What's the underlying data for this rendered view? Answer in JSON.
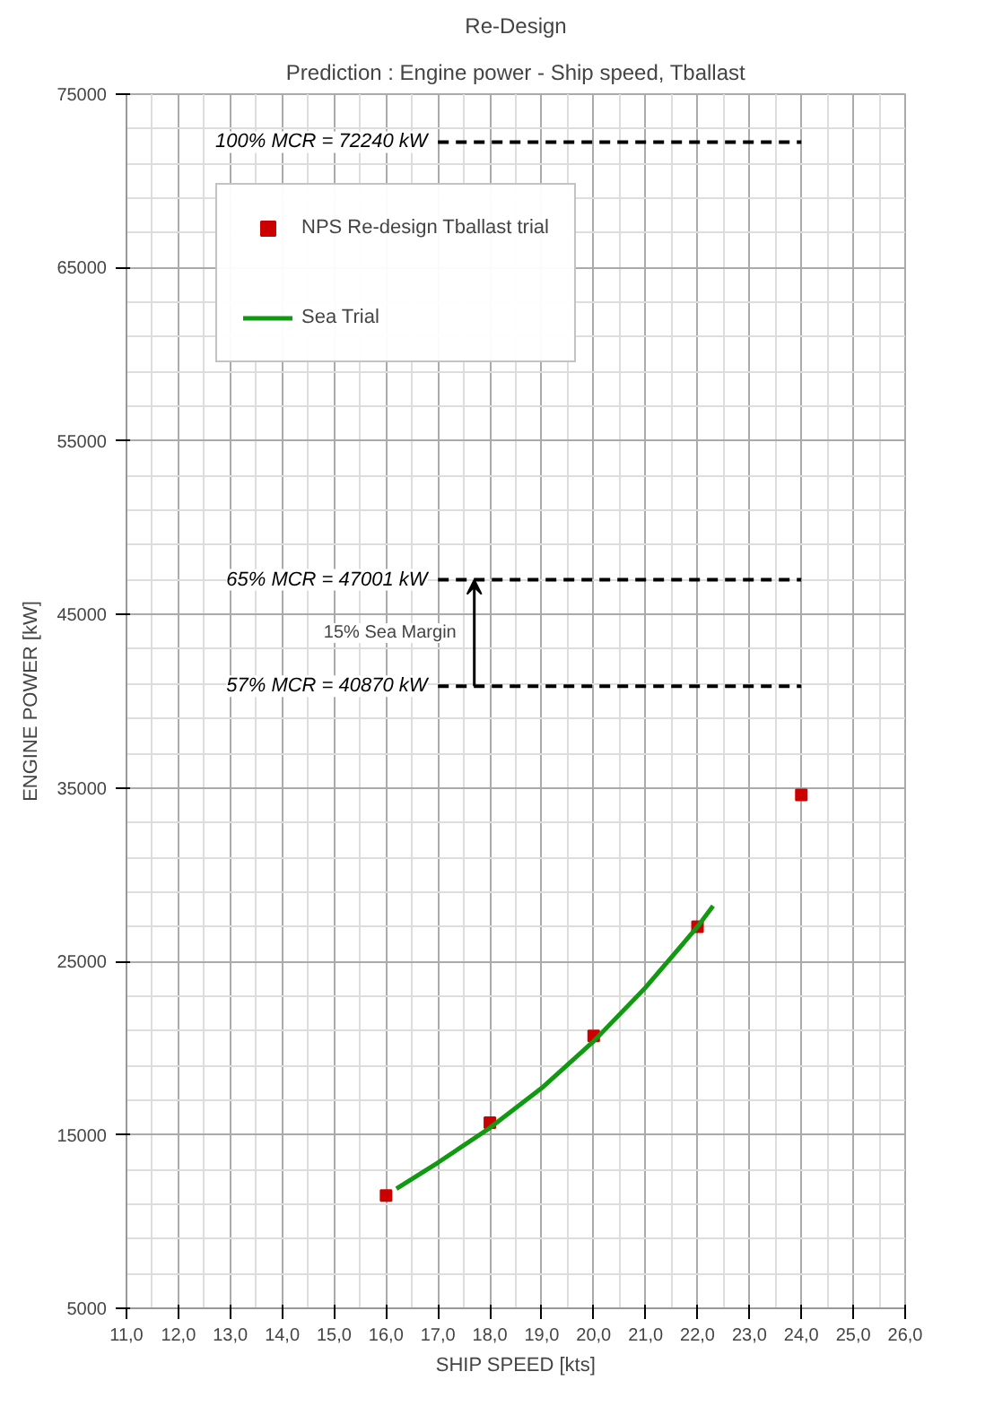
{
  "chart_data": {
    "type": "scatter",
    "title": "Re-Design",
    "subtitle": "Prediction : Engine power - Ship speed, Tballast",
    "xlabel": "SHIP SPEED [kts]",
    "ylabel": "ENGINE POWER [kW]",
    "xlim": [
      11,
      26
    ],
    "ylim": [
      5000,
      75000
    ],
    "xticks": [
      {
        "value": 11,
        "label": "11,0"
      },
      {
        "value": 12,
        "label": "12,0"
      },
      {
        "value": 13,
        "label": "13,0"
      },
      {
        "value": 14,
        "label": "14,0"
      },
      {
        "value": 15,
        "label": "15,0"
      },
      {
        "value": 16,
        "label": "16,0"
      },
      {
        "value": 17,
        "label": "17,0"
      },
      {
        "value": 18,
        "label": "18,0"
      },
      {
        "value": 19,
        "label": "19,0"
      },
      {
        "value": 20,
        "label": "20,0"
      },
      {
        "value": 21,
        "label": "21,0"
      },
      {
        "value": 22,
        "label": "22,0"
      },
      {
        "value": 23,
        "label": "23,0"
      },
      {
        "value": 24,
        "label": "24,0"
      },
      {
        "value": 25,
        "label": "25,0"
      },
      {
        "value": 26,
        "label": "26,0"
      }
    ],
    "yticks": [
      5000,
      15000,
      25000,
      35000,
      45000,
      55000,
      65000,
      75000
    ],
    "grid": true,
    "legend": "top left",
    "series": [
      {
        "name": "NPS Re-design Tballast trial",
        "marker": "square",
        "color": "#cc0000",
        "x": [
          16,
          18,
          20,
          22,
          24
        ],
        "values": [
          11500,
          15700,
          20700,
          27000,
          34600
        ]
      },
      {
        "name": "Sea Trial",
        "type": "line",
        "color": "#119911",
        "line_style": "solid",
        "x": [
          16.2,
          17,
          18,
          19,
          20,
          21,
          22,
          22.3
        ],
        "values": [
          11900,
          13400,
          15400,
          17700,
          20400,
          23500,
          27000,
          28200
        ]
      },
      {
        "name": "100% MCR = 72240 kW",
        "type": "line",
        "color": "#000000",
        "line_style": "dashed",
        "x": [
          17,
          24
        ],
        "values": [
          72240,
          72240
        ]
      },
      {
        "name": "65% MCR = 47001 kW",
        "type": "line",
        "color": "#000000",
        "line_style": "dashed",
        "x": [
          17,
          24
        ],
        "values": [
          47001,
          47001
        ]
      },
      {
        "name": "57% MCR = 40870 kW",
        "type": "line",
        "color": "#000000",
        "line_style": "dashed",
        "x": [
          17,
          24
        ],
        "values": [
          40870,
          40870
        ]
      }
    ],
    "annotations": [
      "15% Sea Margin"
    ]
  }
}
